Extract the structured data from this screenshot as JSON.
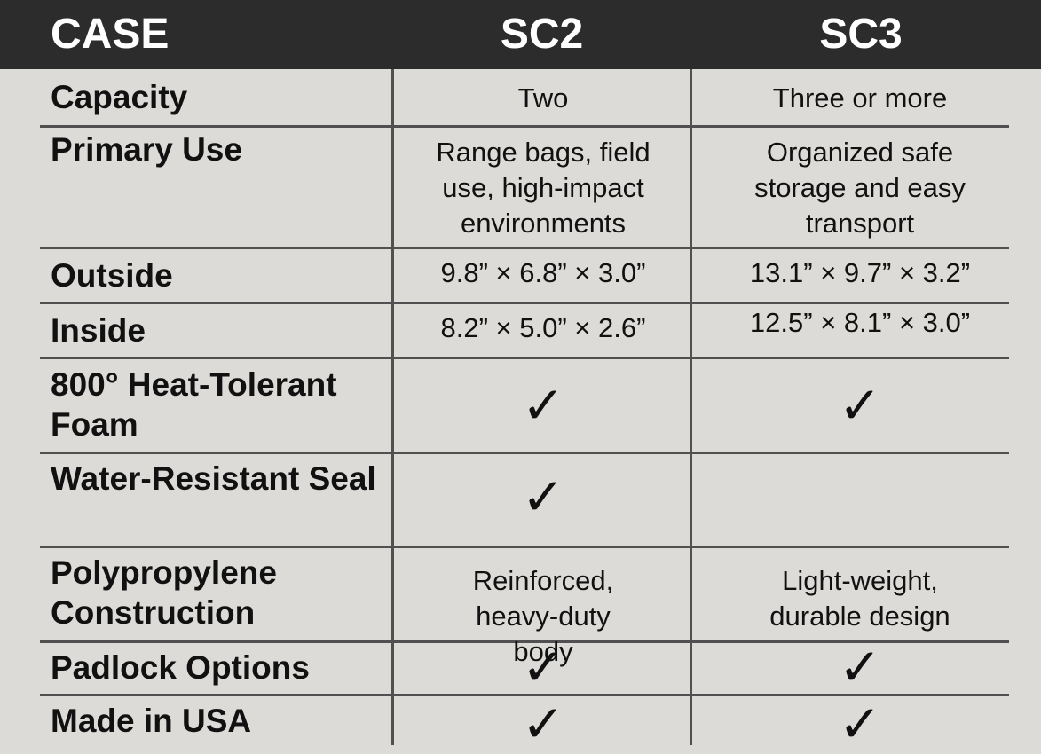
{
  "header": {
    "case": "CASE",
    "sc2": "SC2",
    "sc3": "SC3"
  },
  "rows": [
    {
      "label": "Capacity",
      "sc2": "Two",
      "sc3": "Three or more"
    },
    {
      "label": "Primary Use",
      "sc2": "Range bags, field use, high-impact environments",
      "sc3": "Organized safe storage and easy transport"
    },
    {
      "label": "Outside",
      "sc2": "9.8” × 6.8” × 3.0”",
      "sc3": "13.1” × 9.7” × 3.2”"
    },
    {
      "label": "Inside",
      "sc2": "8.2” × 5.0” × 2.6”",
      "sc3": "12.5” × 8.1” × 3.0”"
    },
    {
      "label": "800° Heat-Tolerant Foam",
      "sc2": "✓",
      "sc3": "✓"
    },
    {
      "label": "Water-Resistant Seal",
      "sc2": "✓",
      "sc3": ""
    },
    {
      "label": "Polypropylene Construction",
      "sc2": "Reinforced, heavy-duty body",
      "sc3": "Light-weight, durable design"
    },
    {
      "label": "Padlock Options",
      "sc2": "✓",
      "sc3": "✓"
    },
    {
      "label": "Made in USA",
      "sc2": "✓",
      "sc3": "✓"
    }
  ]
}
